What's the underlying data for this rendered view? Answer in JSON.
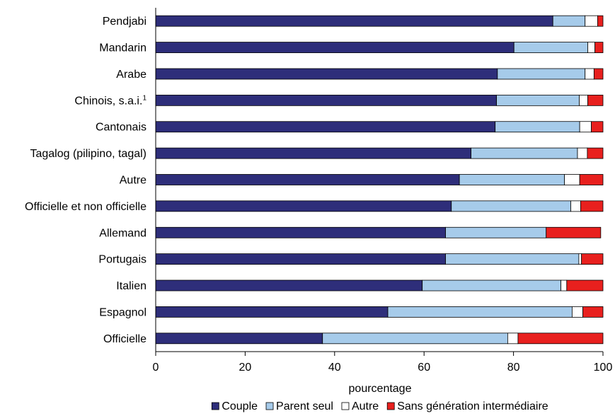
{
  "chart_data": {
    "type": "bar",
    "orientation": "horizontal",
    "stacked": true,
    "categories": [
      "Pendjabi",
      "Mandarin",
      "Arabe",
      "Chinois, s.a.i.",
      "Cantonais",
      "Tagalog (pilipino, tagal)",
      "Autre",
      "Officielle et non officielle",
      "Allemand",
      "Portugais",
      "Italien",
      "Espagnol",
      "Officielle"
    ],
    "category_superscripts": [
      "",
      "",
      "",
      "1",
      "",
      "",
      "",
      "",
      "",
      "",
      "",
      "",
      ""
    ],
    "series": [
      {
        "name": "Couple",
        "color": "#2e2e7a",
        "values": [
          88.8,
          80.1,
          76.4,
          76.2,
          75.9,
          70.5,
          67.9,
          66.1,
          64.8,
          64.8,
          59.6,
          51.9,
          37.3
        ]
      },
      {
        "name": "Parent seul",
        "color": "#a6cbea",
        "values": [
          7.2,
          16.5,
          19.6,
          18.5,
          18.9,
          23.8,
          23.5,
          26.7,
          22.5,
          29.8,
          31.0,
          41.2,
          41.4
        ]
      },
      {
        "name": "Autre",
        "color": "#ffffff",
        "values": [
          2.8,
          1.6,
          2.0,
          1.9,
          2.6,
          2.2,
          3.4,
          2.2,
          0.0,
          0.6,
          1.3,
          2.4,
          2.3
        ]
      },
      {
        "name": "Sans génération intermédiaire",
        "color": "#e8201e",
        "values": [
          1.2,
          1.8,
          2.0,
          3.4,
          2.6,
          3.5,
          5.2,
          5.0,
          12.2,
          4.8,
          8.1,
          4.5,
          19.0
        ]
      }
    ],
    "xlabel": "pourcentage",
    "ylabel": "",
    "xlim": [
      0,
      100
    ],
    "xticks": [
      0,
      20,
      40,
      60,
      80,
      100
    ],
    "grid": false,
    "legend_position": "bottom"
  }
}
